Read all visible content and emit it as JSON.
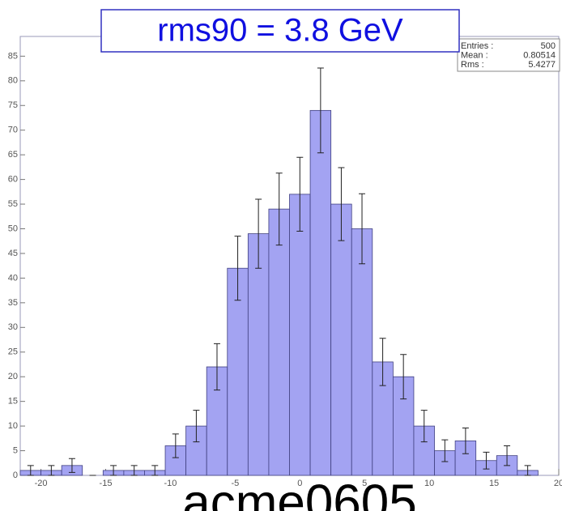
{
  "chart_data": {
    "type": "histogram",
    "title": "rms90 = 3.8 GeV",
    "caption": "acme0605",
    "stats": [
      {
        "label": "Entries :",
        "value": 500
      },
      {
        "label": "Mean :",
        "value": 0.80514
      },
      {
        "label": "Rms :",
        "value": 5.4277
      }
    ],
    "bins": [
      -21.6,
      -20,
      -18.4,
      -16.8,
      -15.2,
      -13.6,
      -12,
      -10.4,
      -8.8,
      -7.2,
      -5.6,
      -4,
      -2.4,
      -0.8,
      0.8,
      2.4,
      4,
      5.6,
      7.2,
      8.8,
      10.4,
      12,
      13.6,
      15.2,
      16.8,
      18.4
    ],
    "values": [
      1,
      1,
      2,
      0,
      1,
      1,
      1,
      6,
      10,
      22,
      42,
      49,
      54,
      57,
      74,
      55,
      50,
      23,
      20,
      10,
      5,
      7,
      3,
      4,
      1
    ],
    "errors": [
      1,
      1,
      1.4,
      0,
      1,
      1,
      1,
      2.4,
      3.2,
      4.7,
      6.5,
      7,
      7.3,
      7.5,
      8.6,
      7.4,
      7.1,
      4.8,
      4.5,
      3.2,
      2.2,
      2.6,
      1.7,
      2,
      1
    ],
    "color": "#a3a3f2",
    "xlim": [
      -21.6,
      20
    ],
    "xticks": [
      -20,
      -15,
      -10,
      -5,
      0,
      5,
      10,
      15,
      20
    ],
    "ylim": [
      0,
      89
    ],
    "yticks": [
      0,
      5,
      10,
      15,
      20,
      25,
      30,
      35,
      40,
      45,
      50,
      55,
      60,
      65,
      70,
      75,
      80,
      85
    ]
  }
}
